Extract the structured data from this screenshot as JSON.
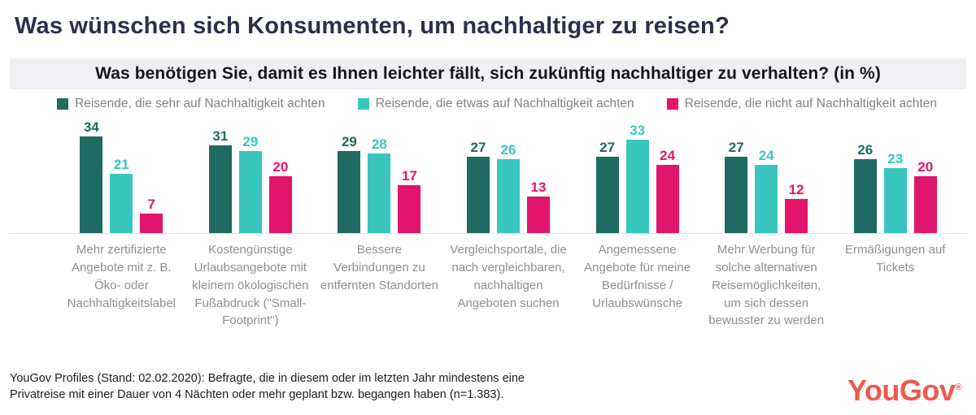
{
  "page": {
    "title": "Was wünschen sich Konsumenten, um nachhaltiger zu reisen?"
  },
  "question": "Was benötigen Sie, damit es Ihnen leichter fällt, sich zukünftig nachhaltiger zu verhalten? (in %)",
  "chart_data": {
    "type": "bar",
    "title": "Was benötigen Sie, damit es Ihnen leichter fällt, sich zukünftig nachhaltiger zu verhalten? (in %)",
    "categories": [
      "Mehr zertifizierte Angebote mit z. B. Öko- oder Nachhaltigkeitslabel",
      "Kostengünstige Urlaubsangebote mit kleinem ökologischen Fußabdruck (\"Small-Footprint\")",
      "Bessere Verbindungen zu entfernten Standorten",
      "Vergleichsportale, die nach vergleichbaren, nachhaltigen Angeboten suchen",
      "Angemessene Angebote für meine Bedürfnisse / Urlaubswünsche",
      "Mehr Werbung für solche alternativen Reisemöglichkeiten, um sich dessen bewusster zu werden",
      "Ermäßigungen auf Tickets"
    ],
    "series": [
      {
        "name": "Reisende, die sehr auf Nachhaltigkeit achten",
        "color": "#1f6a62",
        "values": [
          34,
          31,
          29,
          27,
          27,
          27,
          26
        ]
      },
      {
        "name": "Reisende, die etwas auf Nachhaltigkeit achten",
        "color": "#38c6be",
        "values": [
          21,
          29,
          28,
          26,
          33,
          24,
          23
        ]
      },
      {
        "name": "Reisende, die nicht auf Nachhaltigkeit achten",
        "color": "#e1156b",
        "values": [
          7,
          20,
          17,
          13,
          24,
          12,
          20
        ]
      }
    ],
    "ylim": [
      0,
      36
    ],
    "grid": false,
    "legend_position": "top",
    "value_labels": true,
    "xlabel": "",
    "ylabel": ""
  },
  "footer": {
    "source": "YouGov Profiles (Stand: 02.02.2020): Befragte, die in diesem oder im letzten Jahr mindestens eine Privatreise mit einer Dauer von 4 Nächten oder mehr geplant bzw. begangen haben (n=1.383).",
    "logo_text": "YouGov",
    "logo_mark": "®"
  }
}
